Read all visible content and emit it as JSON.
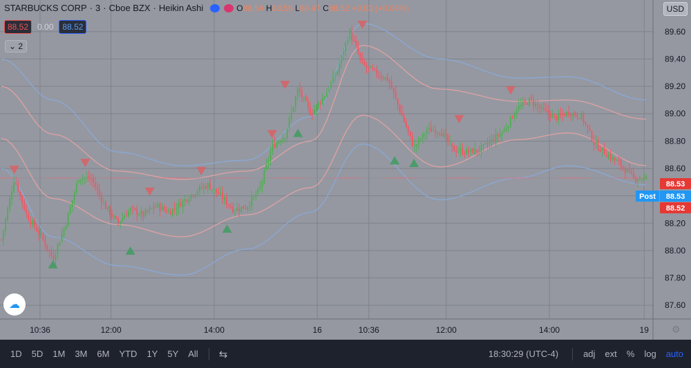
{
  "legend": {
    "symbol": "STARBUCKS CORP",
    "interval": "3",
    "exchange": "Cboe BZX",
    "style": "Heikin Ashi",
    "o_label": "O",
    "o": "88.54",
    "h_label": "H",
    "h": "88.56",
    "l_label": "L",
    "l": "88.47",
    "c_label": "C",
    "c": "88.52",
    "change": "+0.03 (+0.04%)"
  },
  "bid_ask": {
    "bid": "88.52",
    "spread": "0.00",
    "ask": "88.52"
  },
  "indicators_toggle": "2",
  "currency": "USD",
  "price_labels": {
    "last": "88.53",
    "post_label": "Post",
    "post_price": "88.53",
    "bid": "88.52"
  },
  "colors": {
    "background": "#9598a1",
    "up": "#4caf50",
    "down": "#f7525f",
    "band_outer": "#89a9d6",
    "band_inner": "#e0a2a3",
    "marker_sell": "#d96065",
    "marker_buy": "#3f9b5f",
    "accent": "#2962ff"
  },
  "chart_data": {
    "type": "candlestick",
    "style": "Heikin Ashi",
    "y_range": [
      87.5,
      89.73
    ],
    "y_ticks": [
      "89.60",
      "89.40",
      "89.20",
      "89.00",
      "88.80",
      "88.60",
      "88.40",
      "88.20",
      "88.00",
      "87.80",
      "87.60"
    ],
    "x_ticks": [
      "10:36",
      "12:00",
      "14:00",
      "16",
      "10:36",
      "12:00",
      "14:00",
      "19"
    ],
    "grid": true,
    "series": [
      {
        "name": "",
        "values": [
          [
            0.0,
            88.08
          ],
          [
            0.02,
            88.53
          ],
          [
            0.04,
            88.25
          ],
          [
            0.06,
            88.12
          ],
          [
            0.08,
            87.94
          ],
          [
            0.1,
            88.2
          ],
          [
            0.12,
            88.54
          ],
          [
            0.14,
            88.52
          ],
          [
            0.16,
            88.33
          ],
          [
            0.18,
            88.2
          ],
          [
            0.2,
            88.3
          ],
          [
            0.22,
            88.26
          ],
          [
            0.24,
            88.33
          ],
          [
            0.26,
            88.28
          ],
          [
            0.28,
            88.35
          ],
          [
            0.3,
            88.43
          ],
          [
            0.32,
            88.48
          ],
          [
            0.34,
            88.4
          ],
          [
            0.36,
            88.3
          ],
          [
            0.38,
            88.32
          ],
          [
            0.4,
            88.44
          ],
          [
            0.42,
            88.76
          ],
          [
            0.44,
            88.84
          ],
          [
            0.46,
            89.18
          ],
          [
            0.48,
            89.0
          ],
          [
            0.5,
            89.12
          ],
          [
            0.52,
            89.3
          ],
          [
            0.54,
            89.6
          ],
          [
            0.56,
            89.36
          ],
          [
            0.58,
            89.3
          ],
          [
            0.6,
            89.25
          ],
          [
            0.62,
            89.0
          ],
          [
            0.64,
            88.75
          ],
          [
            0.66,
            88.88
          ],
          [
            0.68,
            88.88
          ],
          [
            0.7,
            88.74
          ],
          [
            0.72,
            88.72
          ],
          [
            0.74,
            88.73
          ],
          [
            0.76,
            88.8
          ],
          [
            0.78,
            88.88
          ],
          [
            0.8,
            89.04
          ],
          [
            0.82,
            89.1
          ],
          [
            0.84,
            89.02
          ],
          [
            0.86,
            88.97
          ],
          [
            0.88,
            89.01
          ],
          [
            0.9,
            88.98
          ],
          [
            0.92,
            88.78
          ],
          [
            0.94,
            88.7
          ],
          [
            0.96,
            88.63
          ],
          [
            0.98,
            88.53
          ]
        ]
      }
    ],
    "bands": {
      "outer_upper": [
        [
          0.0,
          89.4
        ],
        [
          0.08,
          89.1
        ],
        [
          0.18,
          88.72
        ],
        [
          0.28,
          88.62
        ],
        [
          0.38,
          88.66
        ],
        [
          0.48,
          88.98
        ],
        [
          0.56,
          89.66
        ],
        [
          0.68,
          89.4
        ],
        [
          0.8,
          89.26
        ],
        [
          0.88,
          89.27
        ],
        [
          1.0,
          89.1
        ]
      ],
      "inner_upper": [
        [
          0.0,
          89.2
        ],
        [
          0.08,
          88.85
        ],
        [
          0.18,
          88.58
        ],
        [
          0.28,
          88.52
        ],
        [
          0.38,
          88.58
        ],
        [
          0.48,
          88.8
        ],
        [
          0.56,
          89.5
        ],
        [
          0.68,
          89.18
        ],
        [
          0.8,
          89.09
        ],
        [
          0.88,
          89.1
        ],
        [
          1.0,
          88.96
        ]
      ],
      "inner_lower": [
        [
          0.0,
          88.82
        ],
        [
          0.08,
          88.38
        ],
        [
          0.18,
          88.19
        ],
        [
          0.28,
          88.1
        ],
        [
          0.38,
          88.26
        ],
        [
          0.48,
          88.46
        ],
        [
          0.56,
          88.99
        ],
        [
          0.68,
          88.61
        ],
        [
          0.8,
          88.81
        ],
        [
          0.88,
          88.86
        ],
        [
          1.0,
          88.62
        ]
      ],
      "outer_lower": [
        [
          0.0,
          88.6
        ],
        [
          0.08,
          88.1
        ],
        [
          0.18,
          87.89
        ],
        [
          0.28,
          87.82
        ],
        [
          0.38,
          88.01
        ],
        [
          0.48,
          88.28
        ],
        [
          0.56,
          88.78
        ],
        [
          0.68,
          88.37
        ],
        [
          0.8,
          88.53
        ],
        [
          0.88,
          88.62
        ],
        [
          1.0,
          88.48
        ]
      ]
    },
    "sell_markers": [
      [
        0.02,
        88.59
      ],
      [
        0.13,
        88.64
      ],
      [
        0.23,
        88.43
      ],
      [
        0.31,
        88.58
      ],
      [
        0.42,
        88.85
      ],
      [
        0.44,
        89.21
      ],
      [
        0.56,
        89.65
      ],
      [
        0.71,
        88.96
      ],
      [
        0.79,
        89.17
      ]
    ],
    "buy_markers": [
      [
        0.08,
        87.9
      ],
      [
        0.2,
        88.0
      ],
      [
        0.35,
        88.16
      ],
      [
        0.46,
        88.86
      ],
      [
        0.61,
        88.66
      ],
      [
        0.64,
        88.64
      ]
    ]
  },
  "toolbar": {
    "timeframes": [
      "1D",
      "5D",
      "1M",
      "3M",
      "6M",
      "YTD",
      "1Y",
      "5Y",
      "All"
    ],
    "time": "18:30:29 (UTC-4)",
    "options": [
      "adj",
      "ext",
      "%",
      "log",
      "auto"
    ]
  }
}
